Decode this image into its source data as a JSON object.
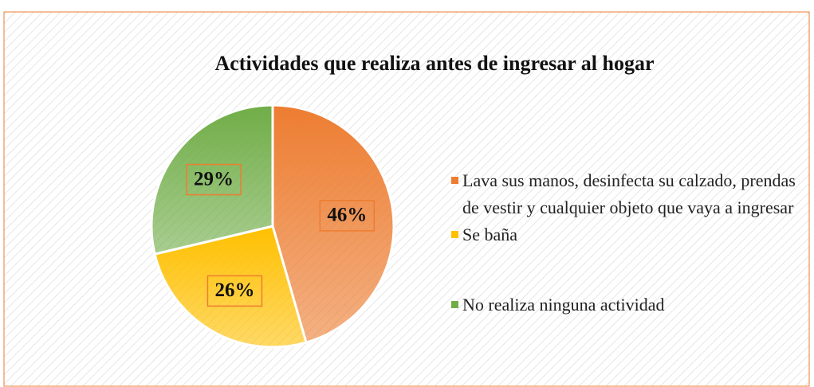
{
  "chart_data": {
    "type": "pie",
    "title": "Actividades que realiza antes de ingresar al hogar",
    "categories": [
      "Lava sus manos, desinfecta su calzado, prendas de vestir y cualquier objeto que vaya a ingresar",
      "Se baña",
      "No realiza ninguna actividad"
    ],
    "values": [
      46,
      26,
      29
    ],
    "value_labels": [
      "46%",
      "26%",
      "29%"
    ],
    "colors": [
      "#ED7D31",
      "#FFC000",
      "#70AD47"
    ],
    "legend": "right"
  }
}
